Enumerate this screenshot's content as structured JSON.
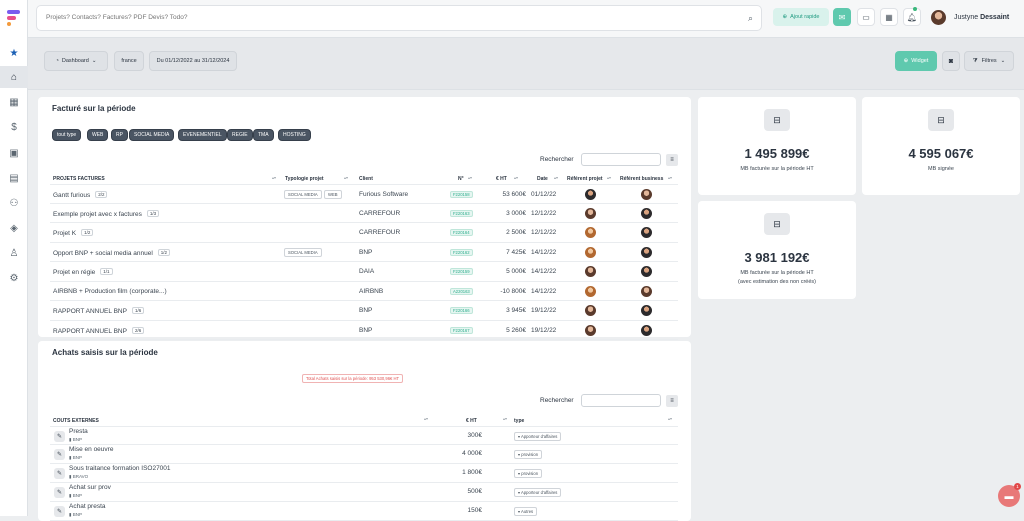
{
  "sidebar": {
    "logo": "flowstart-logo",
    "icons": [
      "star-icon",
      "home-icon",
      "calendar-icon",
      "dollar-icon",
      "folder-icon",
      "book-icon",
      "users-icon",
      "layers-icon",
      "person-icon",
      "settings-icon"
    ]
  },
  "topbar": {
    "search_placeholder": "Projets? Contacts? Factures? PDF Devis? Todo?",
    "quick_add": "Ajout rapide",
    "user_first": "Justyne",
    "user_last": "Dessaint"
  },
  "filters": {
    "dashboard": "Dashboard",
    "country": "france",
    "period": "Du 01/12/2022 au 31/12/2024",
    "widget": "Widget",
    "filtres": "Filtres"
  },
  "invoiced": {
    "title": "Facturé sur la période",
    "tags": [
      "tout type",
      "WEB",
      "RP",
      "SOCIAL MEDIA",
      "EVENEMENTIEL",
      "REGIE",
      "TMA",
      "HOSTING"
    ],
    "search_label": "Rechercher",
    "columns": [
      "PROJETS FACTURES",
      "Typologie projet",
      "Client",
      "n°",
      "€ HT",
      "Date",
      "Référent projet",
      "Référent business"
    ],
    "rows": [
      {
        "project": "Gantt furious",
        "count": "2/2",
        "types": [
          "SOCIAL MEDIA",
          "WEB"
        ],
        "client": "Furious Software",
        "num": "F220158",
        "ht": "53 600€",
        "date": "01/12/22"
      },
      {
        "project": "Exemple projet avec x factures",
        "count": "1/3",
        "types": [],
        "client": "CARREFOUR",
        "num": "F220163",
        "ht": "3 000€",
        "date": "12/12/22"
      },
      {
        "project": "Projet K",
        "count": "1/2",
        "types": [],
        "client": "CARREFOUR",
        "num": "F220164",
        "ht": "2 500€",
        "date": "12/12/22"
      },
      {
        "project": "Opport BNP + social media annuel",
        "count": "1/2",
        "types": [
          "SOCIAL MEDIA"
        ],
        "client": "BNP",
        "num": "F220162",
        "ht": "7 425€",
        "date": "14/12/22"
      },
      {
        "project": "Projet en régie",
        "count": "1/1",
        "types": [],
        "client": "DAIA",
        "num": "F220159",
        "ht": "5 000€",
        "date": "14/12/22"
      },
      {
        "project": "AIRBNB + Production film (corporate...)",
        "count": "",
        "types": [],
        "client": "AIRBNB",
        "num": "A220163",
        "ht": "-10 800€",
        "date": "14/12/22"
      },
      {
        "project": "RAPPORT ANNUEL BNP",
        "count": "1/6",
        "types": [],
        "client": "BNP",
        "num": "F220166",
        "ht": "3 945€",
        "date": "19/12/22"
      },
      {
        "project": "RAPPORT ANNUEL BNP",
        "count": "2/6",
        "types": [],
        "client": "BNP",
        "num": "F220167",
        "ht": "5 260€",
        "date": "19/12/22"
      }
    ]
  },
  "stats": [
    {
      "value": "1 495 899€",
      "label": "MB facturée sur la période HT"
    },
    {
      "value": "4 595 067€",
      "label": "MB signée"
    },
    {
      "value": "3 981 192€",
      "label": "MB facturée sur la période HT",
      "label2": "(avec estimation des non créés)"
    }
  ],
  "purchases": {
    "title": "Achats saisis sur la période",
    "total": "Total Achats saisis sur la période: 953 530,96€ HT",
    "search_label": "Rechercher",
    "columns": [
      "COUTS EXTERNES",
      "€ HT",
      "type"
    ],
    "rows": [
      {
        "name": "Presta",
        "client": "BNP",
        "ht": "300€",
        "type": "Apporteur d'affaires"
      },
      {
        "name": "Mise en oeuvre",
        "client": "BNP",
        "ht": "4 000€",
        "type": "provision"
      },
      {
        "name": "Sous traitance formation ISO27001",
        "client": "BRAVO",
        "ht": "1 800€",
        "type": "provision"
      },
      {
        "name": "Achat sur prov",
        "client": "BNP",
        "ht": "500€",
        "type": "Apporteur d'affaires"
      },
      {
        "name": "Achat presta",
        "client": "BNP",
        "ht": "150€",
        "type": "Autres"
      }
    ]
  },
  "chat": {
    "badge": "1"
  },
  "colors": {
    "accent": "#5fc9ae",
    "dark": "#4a5563"
  }
}
